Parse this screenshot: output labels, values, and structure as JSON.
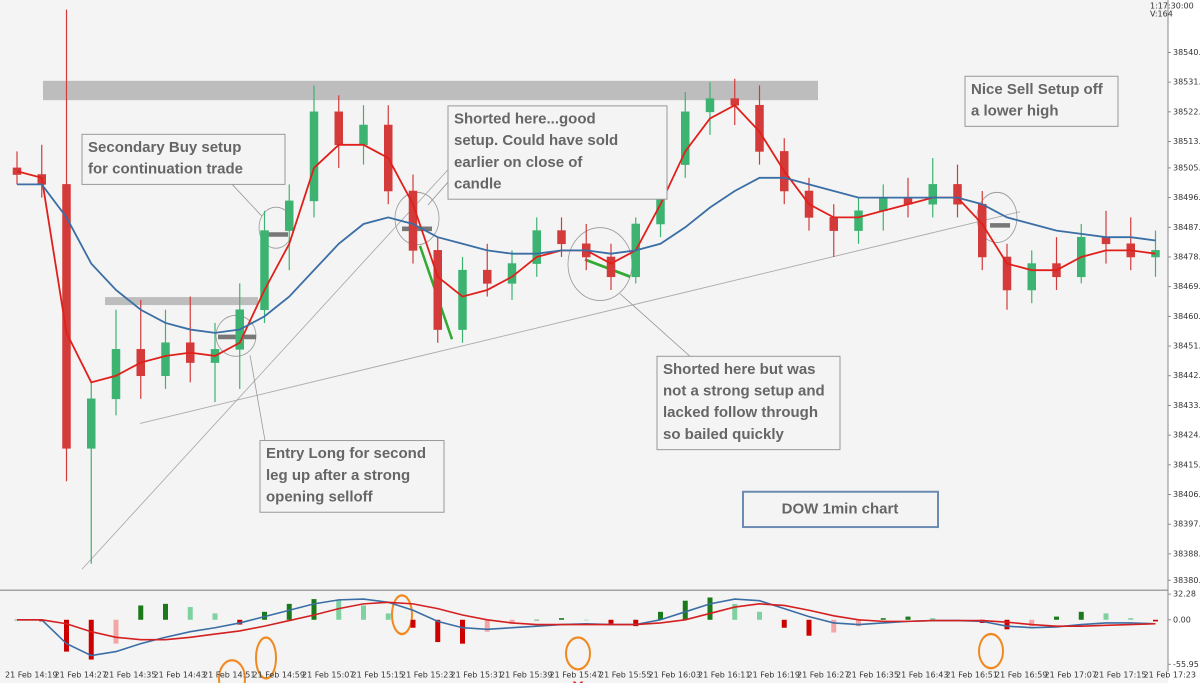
{
  "header": {
    "time": "1:17:30:00",
    "volume": "V:164"
  },
  "chart_data": [
    {
      "type": "candlestick",
      "title": "DOW 1min chart",
      "categories": [
        "21 Feb 14:19",
        null,
        "21 Feb 14:27",
        null,
        "21 Feb 14:35",
        null,
        "21 Feb 14:43",
        null,
        "21 Feb 14:51",
        null,
        "21 Feb 14:59",
        null,
        "21 Feb 15:07",
        null,
        "21 Feb 15:15",
        null,
        "21 Feb 15:23",
        null,
        "21 Feb 15:31",
        null,
        "21 Feb 15:39",
        null,
        "21 Feb 15:47",
        null,
        "21 Feb 15:55",
        null,
        "21 Feb 16:03",
        null,
        "21 Feb 16:11",
        null,
        "21 Feb 16:19",
        null,
        "21 Feb 16:27",
        null,
        "21 Feb 16:35",
        null,
        "21 Feb 16:43",
        null,
        "21 Feb 16:51",
        null,
        "21 Feb 16:59",
        null,
        "21 Feb 17:07",
        null,
        "21 Feb 17:15",
        null,
        "21 Feb 17:23"
      ],
      "open": [
        38505,
        38503,
        38500,
        38420,
        38435,
        38450,
        38442,
        38452,
        38446,
        38450,
        38462,
        38486,
        38495,
        38522,
        38512,
        38518,
        38498,
        38480,
        38456,
        38474,
        38470,
        38476,
        38486,
        38482,
        38478,
        38472,
        38488,
        38506,
        38522,
        38526,
        38524,
        38510,
        38498,
        38490,
        38486,
        38492,
        38496,
        38494,
        38500,
        38494,
        38478,
        38468,
        38476,
        38472,
        38484,
        38482,
        38478
      ],
      "high": [
        38510,
        38512,
        38553,
        38440,
        38462,
        38465,
        38462,
        38466,
        38458,
        38470,
        38492,
        38500,
        38530,
        38527,
        38524,
        38524,
        38503,
        38484,
        38478,
        38482,
        38480,
        38490,
        38490,
        38488,
        38482,
        38490,
        38510,
        38528,
        38531,
        38532,
        38530,
        38514,
        38502,
        38494,
        38496,
        38500,
        38502,
        38508,
        38506,
        38498,
        38482,
        38480,
        38484,
        38488,
        38492,
        38490,
        38486
      ],
      "low": [
        38500,
        38496,
        38410,
        38385,
        38430,
        38435,
        38438,
        38440,
        38434,
        38438,
        38458,
        38474,
        38490,
        38505,
        38506,
        38494,
        38476,
        38452,
        38452,
        38466,
        38465,
        38472,
        38478,
        38474,
        38468,
        38470,
        38484,
        38502,
        38515,
        38518,
        38506,
        38494,
        38486,
        38478,
        38482,
        38486,
        38490,
        38490,
        38490,
        38474,
        38462,
        38464,
        38468,
        38470,
        38476,
        38474,
        38472
      ],
      "close": [
        38503,
        38500,
        38420,
        38435,
        38450,
        38442,
        38452,
        38446,
        38450,
        38462,
        38486,
        38495,
        38522,
        38512,
        38518,
        38498,
        38480,
        38456,
        38474,
        38470,
        38476,
        38486,
        38482,
        38478,
        38472,
        38488,
        38506,
        38522,
        38526,
        38524,
        38510,
        38498,
        38490,
        38486,
        38492,
        38496,
        38494,
        38500,
        38494,
        38478,
        38468,
        38476,
        38472,
        38484,
        38482,
        38478,
        38480
      ],
      "up_color": "#3cb371",
      "down_color": "#d43a3a",
      "series": [
        {
          "color": "#e0201b",
          "values": [
            38504,
            38502,
            38455,
            38440,
            38442,
            38446,
            38448,
            38449,
            38448,
            38452,
            38468,
            38482,
            38505,
            38512,
            38512,
            38508,
            38494,
            38472,
            38466,
            38468,
            38472,
            38478,
            38480,
            38480,
            38476,
            38480,
            38494,
            38510,
            38520,
            38524,
            38516,
            38504,
            38494,
            38490,
            38490,
            38492,
            38494,
            38496,
            38496,
            38488,
            38476,
            38474,
            38474,
            38478,
            38480,
            38480,
            38479
          ]
        },
        {
          "color": "#3a6ea5",
          "values": [
            38500,
            38500,
            38490,
            38476,
            38468,
            38462,
            38458,
            38456,
            38455,
            38456,
            38460,
            38466,
            38474,
            38482,
            38488,
            38490,
            38488,
            38484,
            38482,
            38480,
            38479,
            38479,
            38480,
            38480,
            38479,
            38480,
            38482,
            38487,
            38493,
            38498,
            38502,
            38502,
            38500,
            38498,
            38496,
            38496,
            38496,
            38496,
            38496,
            38494,
            38490,
            38488,
            38486,
            38485,
            38484,
            38484,
            38483
          ]
        }
      ],
      "ylim": [
        38377.5,
        38555.9
      ],
      "yticks": [
        {
          "value": 38540,
          "label": "38540."
        },
        {
          "value": 38531,
          "label": "38531."
        },
        {
          "value": 38522,
          "label": "38522."
        },
        {
          "value": 38513,
          "label": "38513."
        },
        {
          "value": 38505,
          "label": "38505."
        },
        {
          "value": 38496,
          "label": "38496."
        },
        {
          "value": 38487,
          "label": "38487."
        },
        {
          "value": 38478,
          "label": "38478."
        },
        {
          "value": 38469,
          "label": "38469."
        },
        {
          "value": 38460,
          "label": "38460."
        },
        {
          "value": 38451,
          "label": "38451."
        },
        {
          "value": 38442,
          "label": "38442."
        },
        {
          "value": 38433,
          "label": "38433."
        },
        {
          "value": 38424,
          "label": "38424."
        },
        {
          "value": 38415,
          "label": "38415."
        },
        {
          "value": 38406,
          "label": "38406."
        },
        {
          "value": 38397,
          "label": "38397."
        },
        {
          "value": 38388,
          "label": "38388."
        },
        {
          "value": 38380,
          "label": "38380."
        }
      ],
      "annotations": [
        {
          "lines": [
            "Secondary Buy setup",
            "for continuation trade"
          ]
        },
        {
          "lines": [
            "Shorted here...good",
            "setup. Could have sold",
            "earlier on close of",
            "candle"
          ]
        },
        {
          "lines": [
            "Nice Sell Setup off",
            "a lower high"
          ]
        },
        {
          "lines": [
            "Shorted here but was",
            "not a strong setup and",
            "lacked follow through",
            "so bailed quickly"
          ]
        },
        {
          "lines": [
            "Entry Long for second",
            "leg up after a strong",
            "opening selloff"
          ]
        }
      ]
    },
    {
      "type": "macd",
      "values": [
        0,
        -2,
        -40,
        -50,
        -30,
        18,
        20,
        16,
        8,
        -6,
        10,
        20,
        26,
        25,
        18,
        8,
        -10,
        -28,
        -30,
        -15,
        -5,
        0,
        2,
        0,
        -5,
        -8,
        10,
        24,
        28,
        20,
        10,
        -10,
        -20,
        -16,
        -8,
        2,
        4,
        2,
        0,
        -4,
        -12,
        -8,
        4,
        10,
        8,
        2,
        -2
      ],
      "colors": {
        "positive_rising": "#1a7a1a",
        "positive_falling": "#7fd1a0",
        "negative_falling": "#cc0000",
        "negative_rising": "#f4a6a6"
      },
      "series": [
        {
          "color": "#3a6ea5",
          "values": [
            0,
            0,
            -30,
            -45,
            -40,
            -30,
            -22,
            -15,
            -10,
            -4,
            4,
            12,
            20,
            25,
            26,
            22,
            12,
            -2,
            -10,
            -12,
            -10,
            -8,
            -6,
            -5,
            -6,
            -6,
            0,
            10,
            20,
            26,
            24,
            14,
            4,
            -4,
            -6,
            -4,
            -2,
            -1,
            -1,
            -2,
            -8,
            -10,
            -9,
            -6,
            -4,
            -4,
            -5
          ]
        },
        {
          "color": "#d42020",
          "values": [
            0,
            0,
            -5,
            -15,
            -22,
            -25,
            -25,
            -22,
            -18,
            -14,
            -8,
            -1,
            6,
            14,
            20,
            22,
            20,
            14,
            6,
            0,
            -4,
            -6,
            -6,
            -6,
            -6,
            -6,
            -4,
            0,
            8,
            16,
            20,
            18,
            12,
            5,
            0,
            -2,
            -2,
            -1,
            -1,
            -1,
            -3,
            -6,
            -8,
            -8,
            -7,
            -6,
            -5
          ]
        }
      ],
      "marker": "X",
      "ylim": [
        -58,
        35
      ],
      "yticks": [
        32.28,
        {
          "value": 0,
          "label": "0.00"
        },
        -55.95
      ]
    }
  ]
}
